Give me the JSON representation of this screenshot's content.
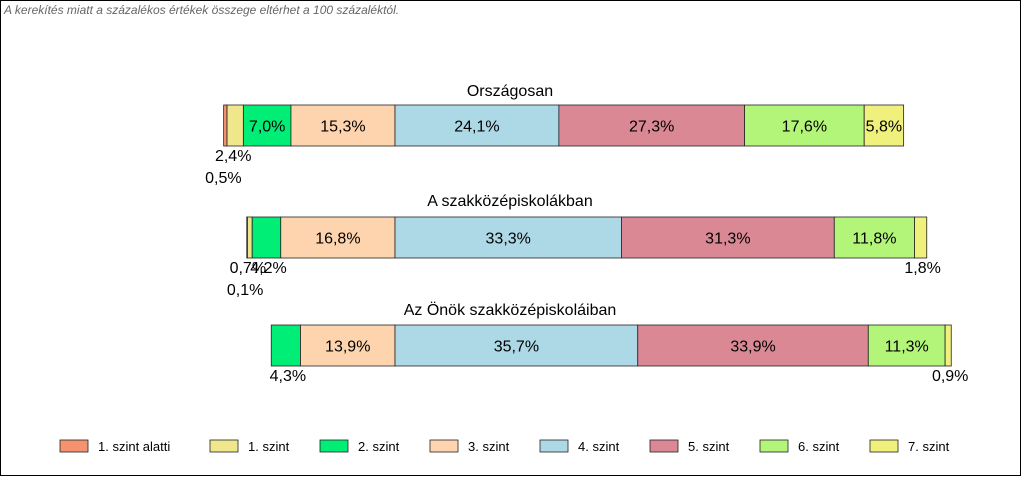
{
  "note": "A kerekítés miatt a  százalékos értékek összege eltérhet a 100 százaléktól.",
  "chart_data": {
    "type": "bar",
    "orientation": "horizontal",
    "stacked": true,
    "centered": true,
    "legend_position": "bottom",
    "series": [
      {
        "name": "1. szint alatti",
        "color": "#F59370"
      },
      {
        "name": "1. szint",
        "color": "#F0E68C"
      },
      {
        "name": "2. szint",
        "color": "#00EE76"
      },
      {
        "name": "3. szint",
        "color": "#FDD4AD"
      },
      {
        "name": "4. szint",
        "color": "#ADD8E6"
      },
      {
        "name": "5. szint",
        "color": "#DB8895"
      },
      {
        "name": "6. szint",
        "color": "#B3F579"
      },
      {
        "name": "7. szint",
        "color": "#F0F07C"
      }
    ],
    "groups": [
      {
        "title": "Országosan",
        "values": [
          0.5,
          2.4,
          7.0,
          15.3,
          24.1,
          27.3,
          17.6,
          5.8
        ],
        "labels": [
          "0,5%",
          "2,4%",
          "7,0%",
          "15,3%",
          "24,1%",
          "27,3%",
          "17,6%",
          "5,8%"
        ]
      },
      {
        "title": "A szakközépiskolákban",
        "values": [
          0.1,
          0.7,
          4.2,
          16.8,
          33.3,
          31.3,
          11.8,
          1.8
        ],
        "labels": [
          "0,1%",
          "0,7%",
          "4,2%",
          "16,8%",
          "33,3%",
          "31,3%",
          "11,8%",
          "1,8%"
        ]
      },
      {
        "title": "Az Önök szakközépiskoláiban",
        "values": [
          0.0,
          0.0,
          4.3,
          13.9,
          35.7,
          33.9,
          11.3,
          0.9
        ],
        "labels": [
          "",
          "",
          "4,3%",
          "13,9%",
          "35,7%",
          "33,9%",
          "11,3%",
          "0,9%"
        ]
      }
    ]
  }
}
